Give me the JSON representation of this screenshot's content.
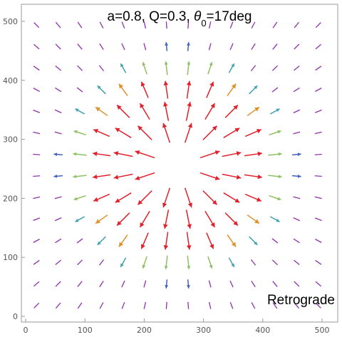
{
  "chart_data": {
    "type": "vector-field",
    "title": {
      "prefix": "a=0.8, Q=0.3, ",
      "symbol": "θ",
      "subscript": "0",
      "suffix": "=17deg"
    },
    "annotation": "Retrograde",
    "xlim": [
      0,
      512
    ],
    "ylim": [
      0,
      512
    ],
    "xticks": [
      0,
      100,
      200,
      300,
      400,
      500
    ],
    "yticks": [
      0,
      100,
      200,
      300,
      400,
      500
    ],
    "center": [
      256,
      256
    ],
    "grid_x": [
      18.3,
      54.9,
      91.4,
      128.0,
      164.6,
      201.1,
      237.7,
      274.3,
      310.9,
      347.4,
      384.0,
      420.6,
      457.1,
      493.7
    ],
    "grid_y": [
      18.3,
      54.9,
      91.4,
      128.0,
      164.6,
      201.1,
      237.7,
      274.3,
      310.9,
      347.4,
      384.0,
      420.6,
      457.1,
      493.7
    ],
    "field": "radial-outward",
    "colors": {
      "strong": "#e0202a",
      "medium_strong": "#e0902a",
      "medium": "#8cc060",
      "medium_weak": "#40a0b0",
      "weak": "#4060c0",
      "weakest": "#9030b0"
    },
    "grid": false
  }
}
